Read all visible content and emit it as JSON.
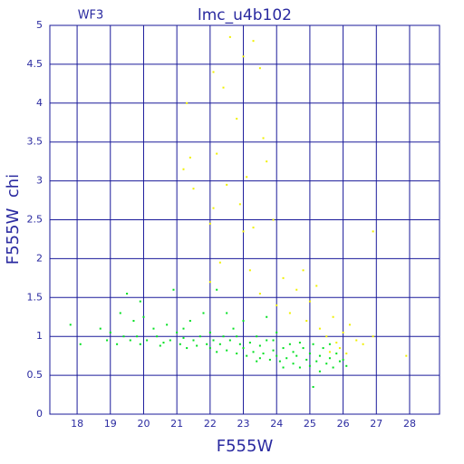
{
  "chart_data": {
    "type": "scatter",
    "title": "lmc_u4b102",
    "subtitle": "WF3",
    "x_label": "F555W",
    "y_label": "F555W  chi",
    "xlim": [
      17.18,
      28.9
    ],
    "ylim": [
      0,
      5
    ],
    "xticks": [
      18,
      19,
      20,
      21,
      22,
      23,
      24,
      25,
      26,
      27,
      28
    ],
    "yticks": [
      0,
      0.5,
      1,
      1.5,
      2,
      2.5,
      3,
      3.5,
      4,
      4.5,
      5
    ],
    "grid": true,
    "series": [
      {
        "color": "#00e020",
        "x": [
          17.8,
          18.1,
          18.7,
          18.9,
          19.0,
          19.2,
          19.3,
          19.4,
          19.5,
          19.6,
          19.7,
          19.8,
          19.9,
          20.0,
          20.1,
          20.3,
          20.4,
          20.5,
          20.7,
          20.8,
          20.9,
          21.0,
          21.1,
          21.2,
          21.3,
          21.4,
          21.5,
          21.6,
          21.7,
          21.8,
          21.9,
          22.0,
          22.0,
          22.1,
          22.2,
          22.2,
          22.3,
          22.4,
          22.5,
          22.6,
          22.7,
          22.8,
          22.9,
          23.0,
          23.0,
          23.1,
          23.2,
          23.3,
          23.4,
          23.5,
          23.5,
          23.6,
          23.7,
          23.8,
          23.9,
          24.0,
          24.0,
          24.1,
          24.2,
          24.3,
          24.4,
          24.5,
          24.5,
          24.6,
          24.7,
          24.8,
          24.9,
          25.0,
          25.0,
          25.1,
          25.2,
          25.3,
          25.3,
          25.4,
          25.5,
          25.6,
          25.7,
          25.8,
          25.9,
          26.0,
          26.1,
          25.1,
          23.7,
          22.5,
          19.9,
          20.6,
          21.2,
          23.4,
          24.7,
          25.6,
          24.2,
          22.8,
          23.9
        ],
        "values": [
          1.15,
          0.9,
          1.1,
          0.95,
          1.05,
          0.9,
          1.3,
          1.0,
          1.55,
          0.95,
          1.2,
          1.0,
          0.9,
          1.25,
          0.95,
          1.1,
          1.0,
          0.88,
          1.15,
          0.95,
          1.6,
          1.05,
          0.9,
          1.1,
          0.85,
          1.2,
          0.95,
          0.88,
          1.0,
          1.3,
          0.9,
          0.85,
          1.05,
          0.95,
          1.6,
          0.8,
          0.9,
          1.0,
          0.82,
          0.95,
          1.1,
          0.78,
          0.9,
          0.85,
          1.2,
          0.75,
          0.92,
          0.8,
          1.0,
          0.72,
          0.88,
          0.78,
          0.95,
          0.7,
          0.82,
          0.75,
          1.05,
          0.68,
          0.85,
          0.72,
          0.9,
          0.65,
          0.8,
          0.75,
          0.6,
          0.85,
          0.7,
          0.62,
          0.78,
          0.9,
          0.68,
          0.55,
          0.75,
          0.85,
          0.65,
          0.72,
          0.6,
          0.78,
          0.68,
          0.7,
          0.62,
          0.35,
          1.25,
          1.3,
          1.45,
          0.92,
          0.98,
          0.68,
          0.92,
          0.9,
          0.6,
          1.0,
          0.95
        ]
      },
      {
        "color": "#f0f000",
        "x": [
          21.3,
          21.2,
          21.4,
          21.5,
          22.1,
          22.2,
          22.4,
          22.6,
          22.8,
          22.5,
          22.1,
          22.0,
          22.9,
          23.0,
          23.1,
          23.3,
          23.5,
          23.6,
          23.7,
          23.3,
          23.0,
          22.0,
          22.3,
          23.2,
          23.9,
          24.2,
          24.6,
          24.8,
          25.0,
          25.2,
          24.4,
          24.9,
          25.3,
          25.5,
          25.7,
          25.9,
          26.0,
          26.2,
          26.4,
          26.6,
          26.9,
          27.9,
          26.9,
          24.0,
          23.5,
          25.6,
          25.8,
          26.1
        ],
        "values": [
          4.0,
          3.15,
          3.3,
          2.9,
          4.4,
          3.35,
          4.2,
          4.85,
          3.8,
          2.95,
          2.65,
          2.45,
          2.7,
          4.6,
          3.05,
          4.8,
          4.45,
          3.55,
          3.25,
          2.4,
          2.35,
          1.7,
          1.95,
          1.85,
          2.5,
          1.75,
          1.6,
          1.85,
          1.45,
          1.65,
          1.3,
          1.2,
          1.1,
          1.0,
          1.25,
          0.85,
          1.05,
          1.15,
          0.95,
          0.9,
          1.0,
          0.75,
          2.35,
          1.4,
          1.55,
          0.8,
          0.92,
          0.78
        ]
      }
    ]
  }
}
